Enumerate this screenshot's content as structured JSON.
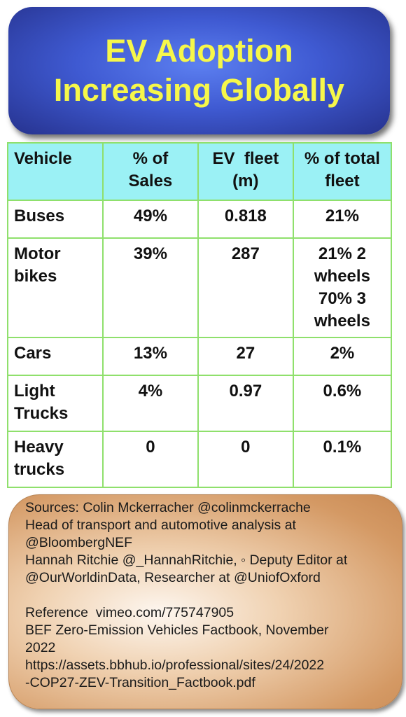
{
  "title": {
    "line1": "EV Adoption",
    "line2": "Increasing Globally"
  },
  "table": {
    "headers": [
      [
        "Vehicle"
      ],
      [
        "% of",
        "Sales"
      ],
      [
        "EV  fleet",
        "(m)"
      ],
      [
        "% of total",
        "fleet"
      ]
    ],
    "rows": [
      {
        "vehicle": [
          "Buses"
        ],
        "sales": "49%",
        "fleet": "0.818",
        "total": [
          "21%"
        ]
      },
      {
        "vehicle": [
          "Motor",
          "bikes"
        ],
        "sales": "39%",
        "fleet": "287",
        "total": [
          "21% 2",
          "wheels",
          "70% 3",
          "wheels"
        ]
      },
      {
        "vehicle": [
          "Cars"
        ],
        "sales": "13%",
        "fleet": "27",
        "total": [
          "2%"
        ]
      },
      {
        "vehicle": [
          "Light",
          "Trucks"
        ],
        "sales": "4%",
        "fleet": "0.97",
        "total": [
          "0.6%"
        ]
      },
      {
        "vehicle": [
          "Heavy",
          "trucks"
        ],
        "sales": "0",
        "fleet": "0",
        "total": [
          "0.1%"
        ]
      }
    ]
  },
  "sources": {
    "lines": [
      "Sources: Colin Mckerracher @colinmckerrache",
      "Head of transport and automotive analysis at",
      "@BloombergNEF",
      "Hannah Ritchie @_HannahRitchie, ◦ Deputy Editor at",
      "@OurWorldinData, Researcher at @UniofOxford"
    ],
    "reference_lines": [
      "Reference  vimeo.com/775747905",
      "BEF Zero-Emission Vehicles Factbook, November",
      "2022",
      "https://assets.bbhub.io/professional/sites/24/2022",
      "-COP27-ZEV-Transition_Factbook.pdf"
    ]
  },
  "colors": {
    "title_bg": "#3f5ad2",
    "title_text": "#f6f74a",
    "header_bg": "#9bf1f5",
    "table_border": "#8fe06c",
    "sources_bg": "#e2b07e"
  }
}
